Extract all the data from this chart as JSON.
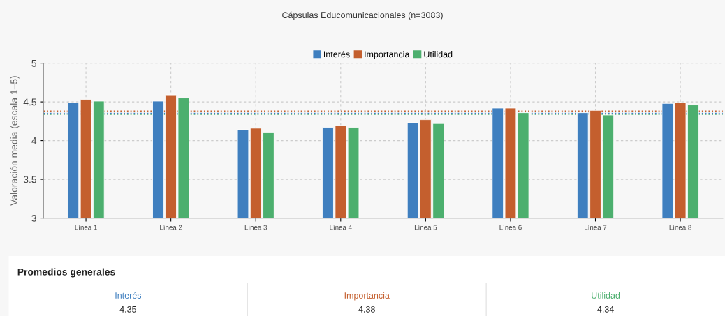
{
  "chart_data": [
    {
      "type": "bar",
      "title": "Cápsulas Educomunicacionales (n=3083)",
      "ylabel": "Valoración media (escala 1–5)",
      "categories": [
        "Línea 1",
        "Línea 2",
        "Línea 3",
        "Línea 4",
        "Línea 5",
        "Línea 6",
        "Línea 7",
        "Línea 8"
      ],
      "series": [
        {
          "name": "Interés",
          "color": "#3f7fbf",
          "values": [
            4.49,
            4.51,
            4.14,
            4.17,
            4.23,
            4.42,
            4.36,
            4.48
          ]
        },
        {
          "name": "Importancia",
          "color": "#c45f2e",
          "values": [
            4.53,
            4.59,
            4.16,
            4.19,
            4.27,
            4.42,
            4.39,
            4.49
          ]
        },
        {
          "name": "Utilidad",
          "color": "#4caf6e",
          "values": [
            4.51,
            4.55,
            4.11,
            4.17,
            4.22,
            4.36,
            4.33,
            4.46
          ]
        }
      ],
      "ylim": [
        3,
        5
      ],
      "yticks": [
        3,
        3.5,
        4,
        4.5,
        5
      ],
      "grid": true,
      "legend": "top",
      "ref_lines": [
        {
          "axis": "y",
          "value": 4.35,
          "color": "#3f7fbf",
          "line_style": "dotted"
        },
        {
          "axis": "y",
          "value": 4.38,
          "color": "#c45f2e",
          "line_style": "dotted"
        },
        {
          "axis": "y",
          "value": 4.34,
          "color": "#4caf6e",
          "line_style": "dotted"
        }
      ]
    },
    {
      "type": "other",
      "title": "Promedios generales",
      "categories": [
        "Interés",
        "Importancia",
        "Utilidad"
      ],
      "values": [
        4.35,
        4.38,
        4.34
      ],
      "data_labels": true
    }
  ]
}
